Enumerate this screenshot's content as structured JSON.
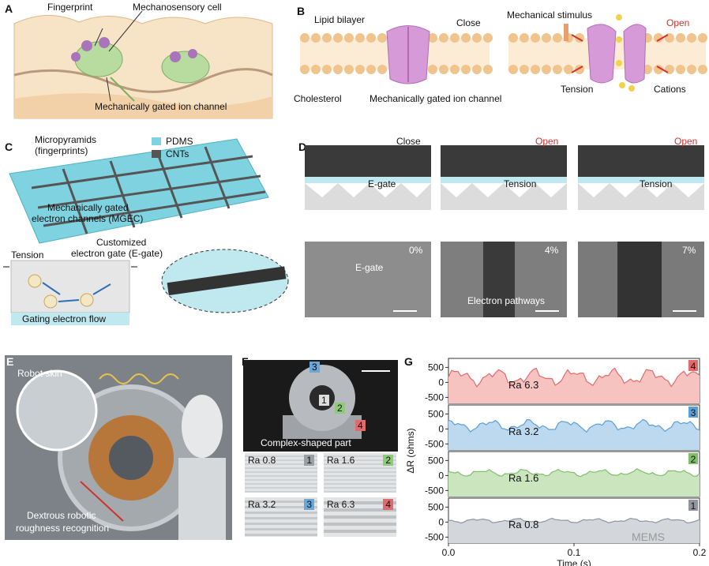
{
  "panels": {
    "A": {
      "label": "A",
      "fingerprint": "Fingerprint",
      "mechanosensory": "Mechanosensory cell",
      "ion_channel": "Mechanically gated ion channel"
    },
    "B": {
      "label": "B",
      "lipid": "Lipid bilayer",
      "close": "Close",
      "stimulus": "Mechanical stimulus",
      "open": "Open",
      "cholesterol": "Cholesterol",
      "ion_channel": "Mechanically gated ion channel",
      "tension": "Tension",
      "cations": "Cations"
    },
    "C": {
      "label": "C",
      "micropyramids": "Micropyramids",
      "fingerprints": "(fingerprints)",
      "pdms": "PDMS",
      "cnts": "CNTs",
      "mgec1": "Mechanically gated",
      "mgec2": "electron channels (MGEC)",
      "custom1": "Customized",
      "custom2": "electron gate (E-gate)",
      "tension": "Tension",
      "gating": "Gating electron flow",
      "e": "e"
    },
    "D": {
      "label": "D",
      "close": "Close",
      "open1": "Open",
      "open2": "Open",
      "egate": "E-gate",
      "tension1": "Tension",
      "tension2": "Tension",
      "pct0": "0%",
      "pct4": "4%",
      "pct7": "7%",
      "sem_egate": "E-gate",
      "pathways": "Electron pathways"
    },
    "E": {
      "label": "E",
      "robot_skin": "Robot skin",
      "dex1": "Dextrous robotic",
      "dex2": "roughness recognition"
    },
    "F": {
      "label": "F",
      "part": "Complex-shaped part",
      "n1": "1",
      "n2": "2",
      "n3": "3",
      "n4": "4",
      "samples": [
        {
          "ra": "Ra 0.8",
          "n": "1",
          "color": "#9aa0a6"
        },
        {
          "ra": "Ra 1.6",
          "n": "2",
          "color": "#8fc97a"
        },
        {
          "ra": "Ra 3.2",
          "n": "3",
          "color": "#6aa6d8"
        },
        {
          "ra": "Ra 6.3",
          "n": "4",
          "color": "#e06b6b"
        }
      ]
    },
    "G": {
      "label": "G"
    }
  },
  "chart_data": {
    "type": "area",
    "xlabel": "Time (s)",
    "ylabel": "ΔR (ohms)",
    "xlim": [
      0,
      0.2
    ],
    "ylim": [
      -700,
      800
    ],
    "xticks": [
      "0.0",
      "0.1",
      "0.2"
    ],
    "yticks": [
      "500",
      "0",
      "-500"
    ],
    "series": [
      {
        "name": "Ra 6.3",
        "badge": "4",
        "color": "#e46a6a",
        "fill": "#f6c3c1",
        "amp": 340,
        "base": 180
      },
      {
        "name": "Ra 3.2",
        "badge": "3",
        "color": "#5b9fd6",
        "fill": "#bcd9ef",
        "amp": 230,
        "base": 120
      },
      {
        "name": "Ra 1.6",
        "badge": "2",
        "color": "#7fbf6a",
        "fill": "#cbe6bf",
        "amp": 140,
        "base": 90
      },
      {
        "name": "Ra 0.8",
        "badge": "1",
        "color": "#8f96a0",
        "fill": "#d3d7dc",
        "amp": 90,
        "base": 50
      }
    ]
  },
  "watermark": "MEMS"
}
